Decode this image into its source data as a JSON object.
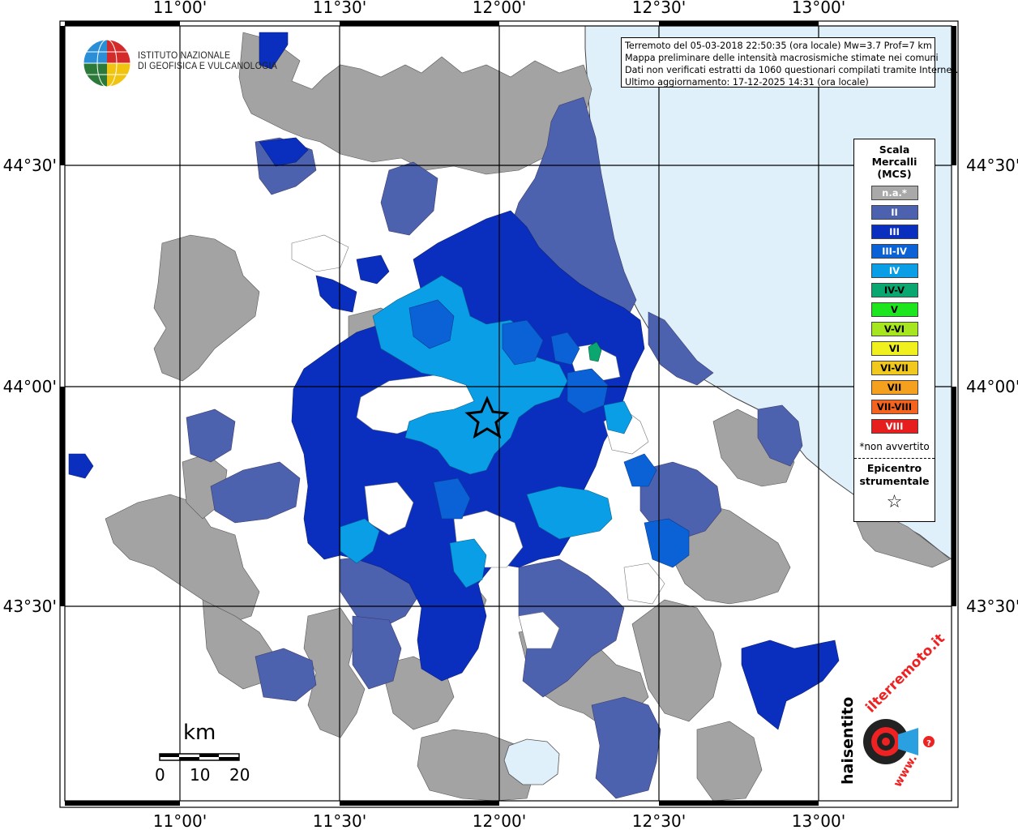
{
  "map": {
    "lon_labels": [
      "11°00'",
      "11°30'",
      "12°00'",
      "12°30'",
      "13°00'"
    ],
    "lat_labels": [
      "44°30'",
      "44°00'",
      "43°30'"
    ]
  },
  "header": {
    "line1": "Terremoto del 05-03-2018 22:50:35 (ora locale) Mw=3.7 Prof=7 km",
    "line2": "Mappa preliminare delle intensità macrosismiche stimate nei comuni",
    "line3": "Dati non verificati estratti da 1060 questionari compilati tramite Internet.",
    "line4": "Ultimo aggiornamento: 17-12-2025 14:31 (ora locale)"
  },
  "logo": {
    "line1": "ISTITUTO NAZIONALE",
    "line2": "DI GEOFISICA E VULCANOLOGIA"
  },
  "legend": {
    "title": [
      "Scala",
      "Mercalli",
      "(MCS)"
    ],
    "items": [
      {
        "label": "n.a.*",
        "color": "#a9a9a9",
        "text_color": "#ffffff"
      },
      {
        "label": "II",
        "color": "#4d62ae",
        "text_color": "#ffffff"
      },
      {
        "label": "III",
        "color": "#0a2fbf",
        "text_color": "#ffffff"
      },
      {
        "label": "III-IV",
        "color": "#0a62d6",
        "text_color": "#ffffff"
      },
      {
        "label": "IV",
        "color": "#0a9ee6",
        "text_color": "#ffffff"
      },
      {
        "label": "IV-V",
        "color": "#0aa870",
        "text_color": "#000000"
      },
      {
        "label": "V",
        "color": "#1ee61e",
        "text_color": "#000000"
      },
      {
        "label": "V-VI",
        "color": "#a6e61e",
        "text_color": "#000000"
      },
      {
        "label": "VI",
        "color": "#f0f01e",
        "text_color": "#000000"
      },
      {
        "label": "VI-VII",
        "color": "#f0c81e",
        "text_color": "#000000"
      },
      {
        "label": "VII",
        "color": "#f5a01e",
        "text_color": "#000000"
      },
      {
        "label": "VII-VIII",
        "color": "#f5641e",
        "text_color": "#000000"
      },
      {
        "label": "VIII",
        "color": "#e61e1e",
        "text_color": "#ffffff"
      }
    ],
    "note": "*non avvertito",
    "epicenter_title": [
      "Epicentro",
      "strumentale"
    ],
    "epicenter_symbol": "☆"
  },
  "scale_bar": {
    "unit": "km",
    "ticks": [
      "0",
      "10",
      "20"
    ]
  },
  "hst": {
    "text_main": "haisentito",
    "text_it": "ilterremoto.it",
    "text_www": "www."
  },
  "colors": {
    "sea": "#dff0fb",
    "grey": "#a3a3a3",
    "II": "#4d62ae",
    "III": "#0a2fbf",
    "III-IV": "#0a62d6",
    "IV": "#0a9ee6",
    "IV-V": "#0aa870"
  }
}
